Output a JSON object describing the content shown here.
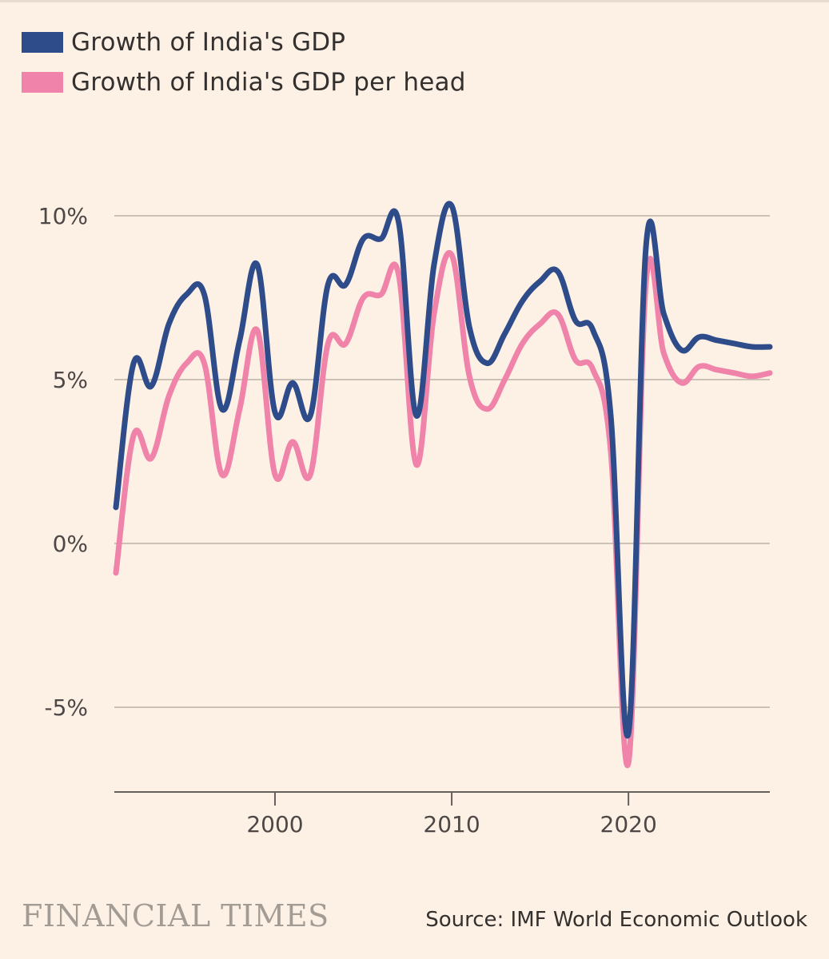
{
  "chart_data": {
    "type": "line",
    "title": "",
    "xlabel": "",
    "ylabel": "",
    "xlim": [
      1991,
      2028
    ],
    "ylim": [
      -8,
      11
    ],
    "y_ticks": [
      10,
      5,
      0,
      -5
    ],
    "y_tick_labels": [
      "10%",
      "5%",
      "0%",
      "-5%"
    ],
    "x_ticks": [
      2000,
      2010,
      2020
    ],
    "x_tick_labels": [
      "2000",
      "2010",
      "2020"
    ],
    "legend_position": "top-left",
    "series": [
      {
        "name": "Growth of India's GDP",
        "color": "#2E4C8A",
        "x": [
          1991,
          1992,
          1993,
          1994,
          1995,
          1996,
          1997,
          1998,
          1999,
          2000,
          2001,
          2002,
          2003,
          2004,
          2005,
          2006,
          2007,
          2008,
          2009,
          2010,
          2011,
          2012,
          2013,
          2014,
          2015,
          2016,
          2017,
          2018,
          2019,
          2020,
          2021,
          2022,
          2023,
          2024,
          2025,
          2026,
          2027,
          2028
        ],
        "values": [
          1.1,
          5.5,
          4.8,
          6.7,
          7.6,
          7.6,
          4.1,
          6.2,
          8.5,
          4.0,
          4.9,
          3.9,
          7.9,
          7.9,
          9.3,
          9.3,
          9.8,
          3.9,
          8.5,
          10.3,
          6.6,
          5.5,
          6.4,
          7.4,
          8.0,
          8.3,
          6.8,
          6.5,
          3.9,
          -5.8,
          9.1,
          7.0,
          5.9,
          6.3,
          6.2,
          6.1,
          6.0,
          6.0
        ]
      },
      {
        "name": "Growth of India's GDP per head",
        "color": "#F083A9",
        "x": [
          1991,
          1992,
          1993,
          1994,
          1995,
          1996,
          1997,
          1998,
          1999,
          2000,
          2001,
          2002,
          2003,
          2004,
          2005,
          2006,
          2007,
          2008,
          2009,
          2010,
          2011,
          2012,
          2013,
          2014,
          2015,
          2016,
          2017,
          2018,
          2019,
          2020,
          2021,
          2022,
          2023,
          2024,
          2025,
          2026,
          2027,
          2028
        ],
        "values": [
          -0.9,
          3.3,
          2.6,
          4.5,
          5.5,
          5.5,
          2.1,
          4.1,
          6.5,
          2.1,
          3.1,
          2.1,
          6.1,
          6.1,
          7.5,
          7.6,
          8.2,
          2.4,
          7.0,
          8.8,
          5.1,
          4.1,
          5.0,
          6.1,
          6.7,
          7.0,
          5.6,
          5.3,
          2.8,
          -6.7,
          8.0,
          5.8,
          4.9,
          5.4,
          5.3,
          5.2,
          5.1,
          5.2
        ]
      }
    ]
  },
  "footer": {
    "logo_text": "FINANCIAL TIMES",
    "source": "Source: IMF World Economic Outlook"
  }
}
